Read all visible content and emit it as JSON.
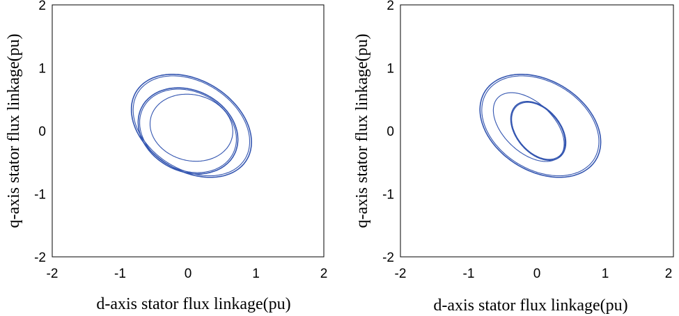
{
  "chart_data": [
    {
      "type": "line",
      "title": "",
      "xlabel": "d-axis stator flux linkage(pu)",
      "ylabel": "q-axis stator flux linkage(pu)",
      "xlim": [
        -2,
        2
      ],
      "ylim": [
        -2,
        2
      ],
      "xticks": [
        "-2",
        "-1",
        "0",
        "1",
        "2"
      ],
      "yticks": [
        "-2",
        "-1",
        "0",
        "1",
        "2"
      ],
      "grid": false,
      "series_color": "#3355b0",
      "series": [
        {
          "style": "bold",
          "cx": 0.05,
          "cy": 0.08,
          "a": 0.98,
          "b": 0.7,
          "rot_deg": -38,
          "points": [
            [
              1.02,
              -0.25
            ],
            [
              0.93,
              0.32
            ],
            [
              0.68,
              0.73
            ],
            [
              0.02,
              0.85
            ],
            [
              -0.62,
              0.57
            ],
            [
              -0.92,
              0.1
            ],
            [
              -0.89,
              -0.35
            ],
            [
              -0.7,
              -0.62
            ],
            [
              0.05,
              -0.87
            ],
            [
              0.86,
              -0.62
            ]
          ]
        },
        {
          "style": "bold",
          "cx": 0.0,
          "cy": 0.0,
          "a": 0.78,
          "b": 0.63,
          "rot_deg": -35,
          "points": [
            [
              0.72,
              0.0
            ],
            [
              0.53,
              0.52
            ],
            [
              0.0,
              0.7
            ],
            [
              -0.56,
              0.42
            ],
            [
              -0.72,
              0.0
            ],
            [
              -0.55,
              -0.44
            ],
            [
              0.0,
              -0.69
            ],
            [
              0.56,
              -0.44
            ]
          ]
        },
        {
          "style": "thin",
          "cx": 0.05,
          "cy": 0.05,
          "a": 0.62,
          "b": 0.52,
          "rot_deg": -20,
          "points": [
            [
              0.62,
              0.28
            ],
            [
              0.0,
              0.66
            ],
            [
              -0.55,
              0.35
            ],
            [
              -0.52,
              -0.32
            ],
            [
              0.12,
              -0.68
            ],
            [
              0.62,
              -0.25
            ]
          ]
        }
      ]
    },
    {
      "type": "line",
      "title": "",
      "xlabel": "d-axis stator flux linkage(pu)",
      "ylabel": "q-axis stator flux linkage(pu)",
      "xlim": [
        -2,
        2
      ],
      "ylim": [
        -2,
        2
      ],
      "xticks": [
        "-2",
        "-1",
        "0",
        "1",
        "2"
      ],
      "yticks": [
        "-2",
        "-1",
        "0",
        "1",
        "2"
      ],
      "grid": false,
      "series_color": "#3355b0",
      "series": [
        {
          "style": "bold",
          "cx": 0.05,
          "cy": 0.08,
          "a": 0.98,
          "b": 0.7,
          "rot_deg": -38,
          "points": [
            [
              1.02,
              -0.25
            ],
            [
              0.93,
              0.32
            ],
            [
              0.68,
              0.73
            ],
            [
              0.02,
              0.85
            ],
            [
              -0.62,
              0.57
            ],
            [
              -0.92,
              0.1
            ],
            [
              -0.89,
              -0.35
            ],
            [
              -0.7,
              -0.62
            ],
            [
              0.05,
              -0.87
            ],
            [
              0.86,
              -0.62
            ]
          ]
        },
        {
          "style": "bold",
          "cx": 0.02,
          "cy": 0.0,
          "a": 0.52,
          "b": 0.33,
          "rot_deg": -55,
          "points": [
            [
              0.42,
              -0.2
            ],
            [
              0.28,
              0.32
            ],
            [
              -0.08,
              0.42
            ],
            [
              -0.36,
              0.1
            ],
            [
              -0.3,
              -0.2
            ],
            [
              0.05,
              -0.42
            ],
            [
              0.38,
              -0.35
            ]
          ]
        },
        {
          "style": "thin",
          "cx": -0.12,
          "cy": 0.06,
          "a": 0.65,
          "b": 0.38,
          "rot_deg": -48,
          "points": [
            [
              -0.62,
              0.35
            ],
            [
              -0.3,
              0.5
            ],
            [
              0.2,
              0.3
            ],
            [
              0.42,
              -0.1
            ],
            [
              0.2,
              -0.4
            ],
            [
              -0.3,
              -0.32
            ],
            [
              -0.55,
              -0.05
            ]
          ]
        }
      ]
    }
  ]
}
